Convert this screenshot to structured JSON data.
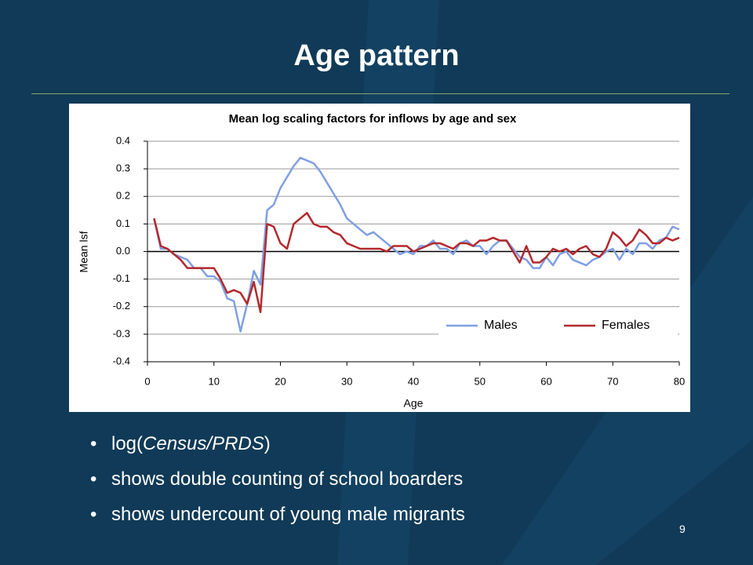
{
  "title": "Age pattern",
  "bullets": [
    [
      "log(",
      "Census/PRDS",
      ")"
    ],
    [
      "shows double counting of school boarders"
    ],
    [
      "shows undercount of young male migrants"
    ]
  ],
  "page_number": 9,
  "chart_data": {
    "type": "line",
    "title": "Mean log scaling factors for inflows by age and sex",
    "x_label": "Age",
    "y_label": "Mean lsf",
    "x": [
      1,
      2,
      3,
      4,
      5,
      6,
      7,
      8,
      9,
      10,
      11,
      12,
      13,
      14,
      15,
      16,
      17,
      18,
      19,
      20,
      21,
      22,
      23,
      24,
      25,
      26,
      27,
      28,
      29,
      30,
      31,
      32,
      33,
      34,
      35,
      36,
      37,
      38,
      39,
      40,
      41,
      42,
      43,
      44,
      45,
      46,
      47,
      48,
      49,
      50,
      51,
      52,
      53,
      54,
      55,
      56,
      57,
      58,
      59,
      60,
      61,
      62,
      63,
      64,
      65,
      66,
      67,
      68,
      69,
      70,
      71,
      72,
      73,
      74,
      75,
      76,
      77,
      78,
      79,
      80
    ],
    "series": [
      {
        "name": "Males",
        "color": "#7f9fe3",
        "values": [
          0.12,
          0.01,
          0.01,
          -0.01,
          -0.02,
          -0.03,
          -0.06,
          -0.06,
          -0.09,
          -0.09,
          -0.11,
          -0.17,
          -0.18,
          -0.29,
          -0.19,
          -0.07,
          -0.12,
          0.15,
          0.17,
          0.23,
          0.27,
          0.31,
          0.34,
          0.33,
          0.32,
          0.29,
          0.25,
          0.21,
          0.17,
          0.12,
          0.1,
          0.08,
          0.06,
          0.07,
          0.05,
          0.03,
          0.01,
          -0.01,
          0.0,
          -0.01,
          0.02,
          0.02,
          0.04,
          0.01,
          0.01,
          -0.01,
          0.03,
          0.04,
          0.02,
          0.02,
          -0.01,
          0.02,
          0.04,
          0.04,
          0.01,
          -0.02,
          -0.03,
          -0.06,
          -0.06,
          -0.02,
          -0.05,
          -0.01,
          0.0,
          -0.03,
          -0.04,
          -0.05,
          -0.03,
          -0.02,
          0.0,
          0.01,
          -0.03,
          0.01,
          -0.01,
          0.03,
          0.03,
          0.01,
          0.04,
          0.05,
          0.09,
          0.08
        ]
      },
      {
        "name": "Females",
        "color": "#b3282d",
        "values": [
          0.12,
          0.02,
          0.01,
          -0.01,
          -0.03,
          -0.06,
          -0.06,
          -0.06,
          -0.06,
          -0.06,
          -0.1,
          -0.15,
          -0.14,
          -0.15,
          -0.19,
          -0.11,
          -0.22,
          0.1,
          0.09,
          0.03,
          0.01,
          0.1,
          0.12,
          0.14,
          0.1,
          0.09,
          0.09,
          0.07,
          0.06,
          0.03,
          0.02,
          0.01,
          0.01,
          0.01,
          0.01,
          0.0,
          0.02,
          0.02,
          0.02,
          0.0,
          0.01,
          0.02,
          0.03,
          0.03,
          0.02,
          0.01,
          0.03,
          0.03,
          0.02,
          0.04,
          0.04,
          0.05,
          0.04,
          0.04,
          0.0,
          -0.04,
          0.02,
          -0.04,
          -0.04,
          -0.02,
          0.01,
          0.0,
          0.01,
          -0.01,
          0.01,
          0.02,
          -0.01,
          -0.02,
          0.01,
          0.07,
          0.05,
          0.02,
          0.04,
          0.08,
          0.06,
          0.03,
          0.03,
          0.05,
          0.04,
          0.05
        ]
      }
    ],
    "xlim": [
      0,
      80
    ],
    "xticks": [
      0,
      10,
      20,
      30,
      40,
      50,
      60,
      70,
      80
    ],
    "ylim": [
      -0.4,
      0.4
    ],
    "yticks": [
      -0.4,
      -0.3,
      -0.2,
      -0.1,
      {
        "value": 0,
        "label": "0.0"
      },
      0.1,
      0.2,
      0.3,
      0.4
    ],
    "grid": true,
    "legend": "lower right"
  }
}
